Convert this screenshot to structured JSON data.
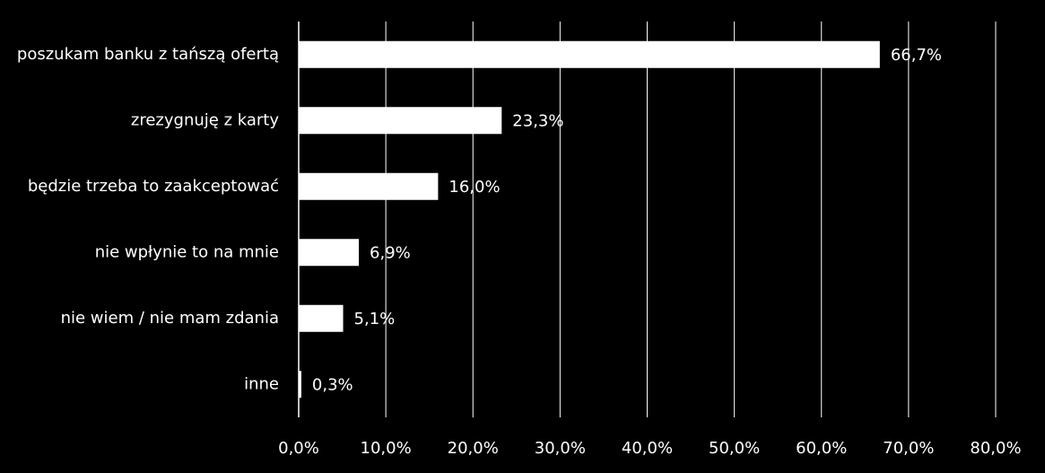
{
  "chart_data": {
    "type": "bar",
    "orientation": "horizontal",
    "categories": [
      "poszukam banku z tańszą ofertą",
      "zrezygnuję z karty",
      "będzie trzeba to zaakceptować",
      "nie wpłynie to na mnie",
      "nie wiem / nie mam zdania",
      "inne"
    ],
    "values": [
      66.7,
      23.3,
      16.0,
      6.9,
      5.1,
      0.3
    ],
    "value_labels": [
      "66,7%",
      "23,3%",
      "16,0%",
      "6,9%",
      "5,1%",
      "0,3%"
    ],
    "color": "#ffffff",
    "background": "#000000",
    "xlim": [
      0,
      80
    ],
    "xticks": [
      {
        "value": 0,
        "label": "0,0%"
      },
      {
        "value": 10,
        "label": "10,0%"
      },
      {
        "value": 20,
        "label": "20,0%"
      },
      {
        "value": 30,
        "label": "30,0%"
      },
      {
        "value": 40,
        "label": "40,0%"
      },
      {
        "value": 50,
        "label": "50,0%"
      },
      {
        "value": 60,
        "label": "60,0%"
      },
      {
        "value": 70,
        "label": "70,0%"
      },
      {
        "value": 80,
        "label": "80,0%"
      }
    ],
    "grid": true
  }
}
